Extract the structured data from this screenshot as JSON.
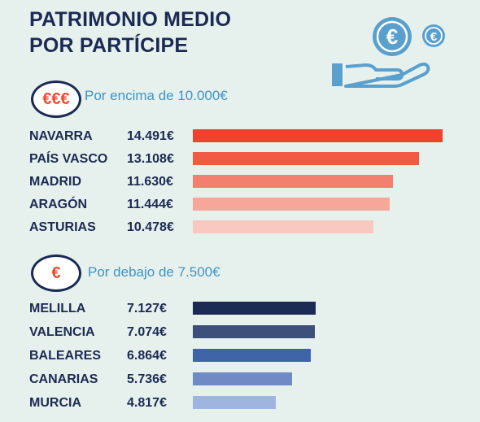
{
  "title": {
    "line1": "PATRIMONIO MEDIO",
    "line2": "POR PARTÍCIPE"
  },
  "icon": "hand-holding-euro-coins-icon",
  "chart_data": [
    {
      "type": "bar",
      "orientation": "horizontal",
      "badge": "€€€",
      "subtitle": "Por encima de 10.000€",
      "categories": [
        "NAVARRA",
        "PAÍS VASCO",
        "MADRID",
        "ARAGÓN",
        "ASTURIAS"
      ],
      "values": [
        14491,
        13108,
        11630,
        11444,
        10478
      ],
      "value_labels": [
        "14.491€",
        "13.108€",
        "11.630€",
        "11.444€",
        "10.478€"
      ],
      "colors": [
        "#f2402e",
        "#f05a44",
        "#f37f6e",
        "#f6a79a",
        "#f8c8bf"
      ],
      "unit": "€"
    },
    {
      "type": "bar",
      "orientation": "horizontal",
      "badge": "€",
      "subtitle": "Por debajo de 7.500€",
      "categories": [
        "MELILLA",
        "VALENCIA",
        "BALEARES",
        "CANARIAS",
        "MURCIA"
      ],
      "values": [
        7127,
        7074,
        6864,
        5736,
        4817
      ],
      "value_labels": [
        "7.127€",
        "7.074€",
        "6.864€",
        "5.736€",
        "4.817€"
      ],
      "colors": [
        "#1b2a52",
        "#3c4f78",
        "#3f64a8",
        "#6f8ac4",
        "#9fb4df"
      ],
      "unit": "€"
    }
  ]
}
